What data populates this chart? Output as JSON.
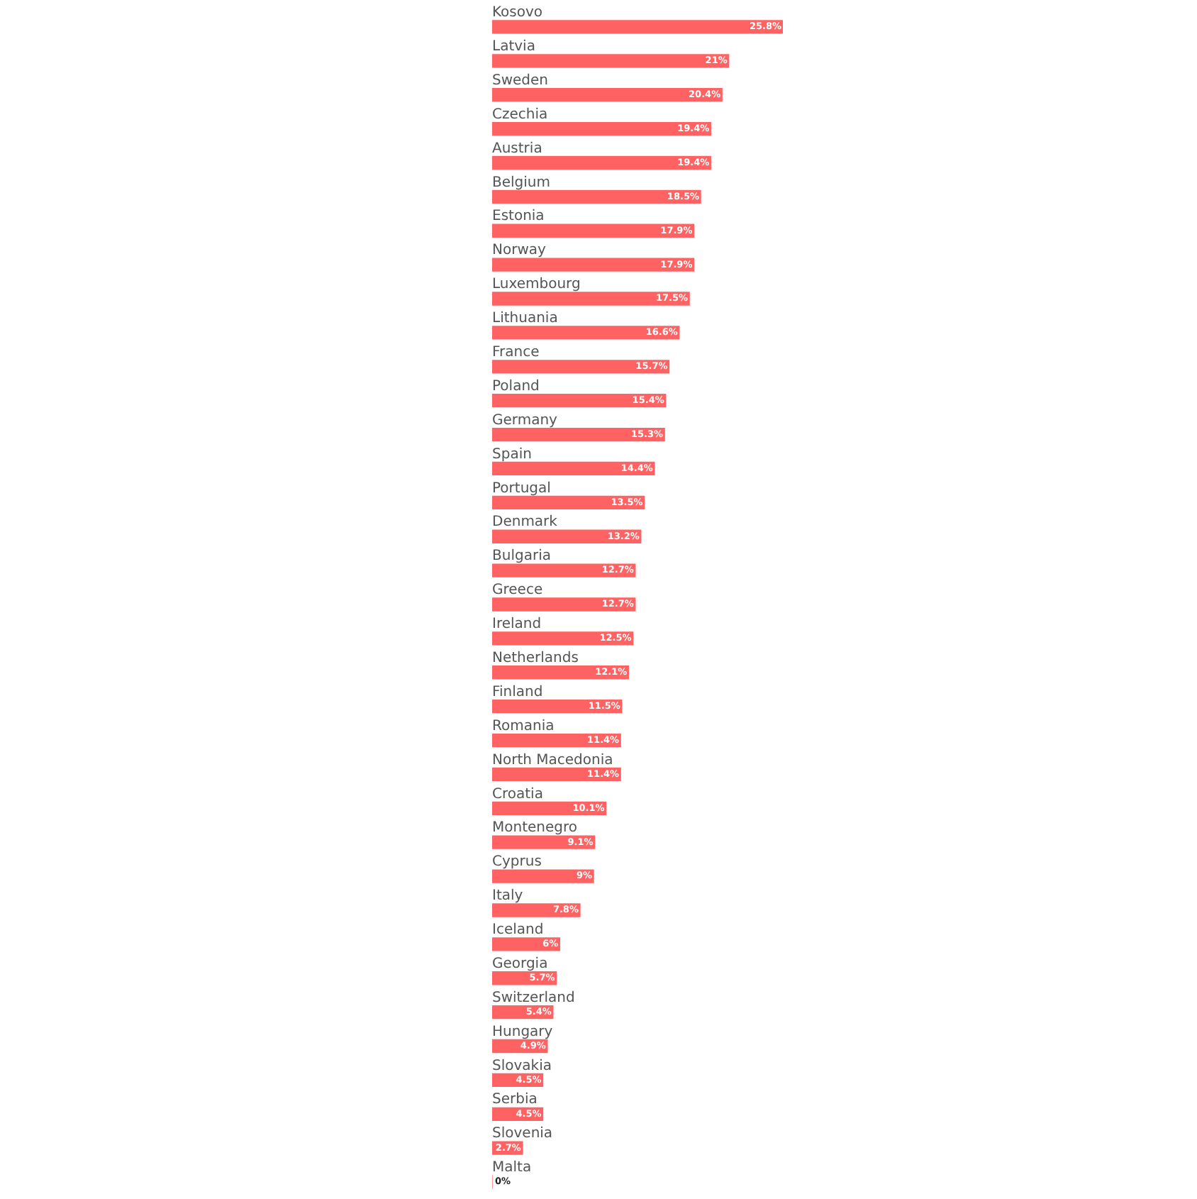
{
  "chart_data": {
    "type": "bar",
    "orientation": "horizontal",
    "categories": [
      "Kosovo",
      "Latvia",
      "Sweden",
      "Czechia",
      "Austria",
      "Belgium",
      "Estonia",
      "Norway",
      "Luxembourg",
      "Lithuania",
      "France",
      "Poland",
      "Germany",
      "Spain",
      "Portugal",
      "Denmark",
      "Bulgaria",
      "Greece",
      "Ireland",
      "Netherlands",
      "Finland",
      "Romania",
      "North Macedonia",
      "Croatia",
      "Montenegro",
      "Cyprus",
      "Italy",
      "Iceland",
      "Georgia",
      "Switzerland",
      "Hungary",
      "Slovakia",
      "Serbia",
      "Slovenia",
      "Malta"
    ],
    "values": [
      25.8,
      21,
      20.4,
      19.4,
      19.4,
      18.5,
      17.9,
      17.9,
      17.5,
      16.6,
      15.7,
      15.4,
      15.3,
      14.4,
      13.5,
      13.2,
      12.7,
      12.7,
      12.5,
      12.1,
      11.5,
      11.4,
      11.4,
      10.1,
      9.1,
      9,
      7.8,
      6,
      5.7,
      5.4,
      4.9,
      4.5,
      4.5,
      2.7,
      0
    ],
    "value_labels": [
      "25.8%",
      "21%",
      "20.4%",
      "19.4%",
      "19.4%",
      "18.5%",
      "17.9%",
      "17.9%",
      "17.5%",
      "16.6%",
      "15.7%",
      "15.4%",
      "15.3%",
      "14.4%",
      "13.5%",
      "13.2%",
      "12.7%",
      "12.7%",
      "12.5%",
      "12.1%",
      "11.5%",
      "11.4%",
      "11.4%",
      "10.1%",
      "9.1%",
      "9%",
      "7.8%",
      "6%",
      "5.7%",
      "5.4%",
      "4.9%",
      "4.5%",
      "4.5%",
      "2.7%",
      "0%"
    ],
    "color": "#ff6262",
    "legend": false
  }
}
